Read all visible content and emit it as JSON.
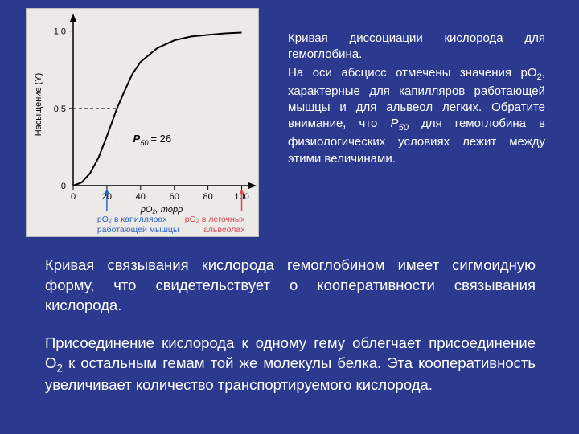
{
  "background_color": "#2b3a8f",
  "text_color": "#ffffff",
  "chart": {
    "type": "line",
    "background_color": "#eceae6",
    "axis_color": "#000000",
    "curve_color": "#000000",
    "curve_width": 2,
    "dash_color": "#4a4a4a",
    "xlabel": "pO₂, торр",
    "ylabel": "Насыщение (Y)",
    "label_fontsize": 11,
    "tick_fontsize": 11,
    "x_ticks": [
      0,
      20,
      40,
      60,
      80,
      100
    ],
    "y_ticks": [
      0,
      0.5,
      1.0
    ],
    "y_tick_labels": [
      "0",
      "0,5",
      "1,0"
    ],
    "p50_label": "P₅₀ = 26",
    "p50_x": 26,
    "markers": [
      {
        "x": 20,
        "color": "#2b62c9",
        "label_top": "pO₂ в капиллярах",
        "label_bottom": "работающей мышцы"
      },
      {
        "x": 100,
        "color": "#d94a5a",
        "label_top": "pO₂ в легочных",
        "label_bottom": "альвеолах"
      }
    ],
    "curve_points": [
      [
        0,
        0
      ],
      [
        5,
        0.02
      ],
      [
        10,
        0.08
      ],
      [
        15,
        0.18
      ],
      [
        20,
        0.32
      ],
      [
        26,
        0.5
      ],
      [
        30,
        0.6
      ],
      [
        35,
        0.72
      ],
      [
        40,
        0.8
      ],
      [
        50,
        0.89
      ],
      [
        60,
        0.94
      ],
      [
        70,
        0.965
      ],
      [
        80,
        0.975
      ],
      [
        90,
        0.985
      ],
      [
        100,
        0.99
      ]
    ],
    "xlim": [
      0,
      105
    ],
    "ylim": [
      0,
      1.05
    ]
  },
  "right_paragraph": {
    "title": "Кривая диссоциации кислорода для гемоглобина.",
    "body_html": "На оси абсцисс отмечены значения pO<span class=\"sub\">2</span>, характерные для капилляров работающей мышцы и для альвеол легких. Обратите внимание, что <span class=\"ital\">P<span class=\"sub\">50</span></span> для гемоглобина в физиологических условиях лежит между этими величинами."
  },
  "bottom_paragraphs": [
    "Кривая связывания кислорода гемоглобином имеет сигмоидную форму, что свидетельствует о кооперативности связывания кислорода.",
    "Присоединение кислорода к одному гему облегчает присоединение O<span class=\"sub\">2</span> к остальным гемам той же молекулы белка. Эта кооперативность увеличивает количество транспортируемого кислорода."
  ]
}
